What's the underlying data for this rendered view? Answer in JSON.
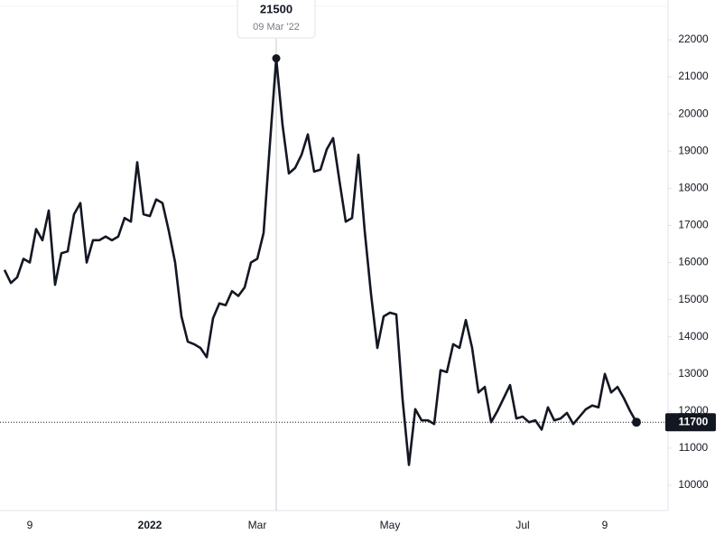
{
  "chart_data": {
    "type": "line",
    "categories": [
      null,
      null,
      null,
      null,
      "9",
      null,
      null,
      null,
      null,
      null,
      null,
      null,
      null,
      null,
      null,
      null,
      null,
      null,
      null,
      null,
      null,
      null,
      null,
      "2022",
      null,
      null,
      null,
      null,
      null,
      null,
      null,
      null,
      null,
      null,
      null,
      null,
      null,
      null,
      null,
      null,
      "Mar",
      null,
      null,
      null,
      null,
      null,
      null,
      null,
      null,
      null,
      null,
      null,
      null,
      null,
      null,
      null,
      null,
      null,
      null,
      null,
      null,
      "May",
      null,
      null,
      null,
      null,
      null,
      null,
      null,
      null,
      null,
      null,
      null,
      null,
      null,
      null,
      null,
      null,
      null,
      null,
      null,
      null,
      "Jul",
      null,
      null,
      null,
      null,
      null,
      null,
      null,
      null,
      null,
      null,
      null,
      null,
      "9",
      null,
      null,
      null,
      null,
      null
    ],
    "values": [
      15800,
      15450,
      15600,
      16100,
      16000,
      16900,
      16600,
      17400,
      15400,
      16250,
      16300,
      17300,
      17600,
      16000,
      16600,
      16600,
      16700,
      16600,
      16700,
      17200,
      17100,
      18700,
      17300,
      17250,
      17700,
      17600,
      16850,
      16000,
      14550,
      13870,
      13800,
      13700,
      13450,
      14500,
      14900,
      14850,
      15230,
      15100,
      15330,
      16000,
      16100,
      16800,
      19200,
      21500,
      19700,
      18400,
      18550,
      18900,
      19450,
      18450,
      18500,
      19050,
      19350,
      18200,
      17100,
      17200,
      18900,
      16850,
      15150,
      13700,
      14550,
      14650,
      14600,
      12300,
      10550,
      12050,
      11750,
      11750,
      11650,
      13100,
      13050,
      13800,
      13700,
      14450,
      13700,
      12500,
      12650,
      11700,
      12000,
      12350,
      12700,
      11800,
      11850,
      11700,
      11750,
      11500,
      12100,
      11750,
      11800,
      11950,
      11650,
      11850,
      12050,
      12150,
      12100,
      13000,
      12500,
      12650,
      12350,
      12000,
      11700
    ],
    "color": "#131722",
    "ylim": [
      9320,
      23070
    ],
    "yticks": [
      10000,
      11000,
      12000,
      13000,
      14000,
      15000,
      16000,
      17000,
      18000,
      19000,
      20000,
      21000,
      22000
    ],
    "tooltip": {
      "value": 21500,
      "date": "09 Mar '22"
    },
    "last_value": 11700
  }
}
